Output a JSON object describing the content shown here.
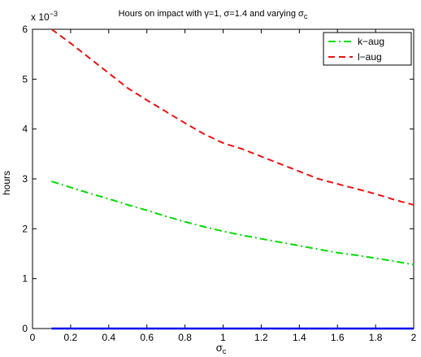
{
  "chart_data": {
    "type": "line",
    "title_prefix": "Hours on impact with ",
    "title_gamma": "γ=1, σ=1.4 and varying σ",
    "title_sub": "c",
    "xlabel_main": "σ",
    "xlabel_sub": "c",
    "ylabel": "hours",
    "y_multiplier_base": "x 10",
    "y_multiplier_exp": "−3",
    "xlim": [
      0,
      2
    ],
    "ylim": [
      0,
      6
    ],
    "xticks": [
      0,
      0.2,
      0.4,
      0.6,
      0.8,
      1,
      1.2,
      1.4,
      1.6,
      1.8,
      2
    ],
    "xtick_labels": [
      "0",
      "0.2",
      "0.4",
      "0.6",
      "0.8",
      "1",
      "1.2",
      "1.4",
      "1.6",
      "1.8",
      "2"
    ],
    "yticks": [
      0,
      1,
      2,
      3,
      4,
      5,
      6
    ],
    "ytick_labels": [
      "0",
      "1",
      "2",
      "3",
      "4",
      "5",
      "6"
    ],
    "legend_position": "top-right",
    "grid": false,
    "series": [
      {
        "name": "k−aug",
        "color": "#00dd00",
        "dash": "dash-dot",
        "x": [
          0.1,
          0.2,
          0.3,
          0.4,
          0.5,
          0.6,
          0.7,
          0.8,
          0.9,
          1.0,
          1.1,
          1.2,
          1.3,
          1.4,
          1.5,
          1.6,
          1.7,
          1.8,
          1.9,
          2.0
        ],
        "y": [
          2.95,
          2.83,
          2.71,
          2.6,
          2.48,
          2.37,
          2.25,
          2.14,
          2.04,
          1.95,
          1.87,
          1.8,
          1.73,
          1.66,
          1.59,
          1.52,
          1.47,
          1.41,
          1.35,
          1.28
        ]
      },
      {
        "name": "l−aug",
        "color": "#ee1111",
        "dash": "dashed",
        "x": [
          0.1,
          0.2,
          0.3,
          0.4,
          0.5,
          0.6,
          0.7,
          0.8,
          0.9,
          1.0,
          1.1,
          1.2,
          1.3,
          1.4,
          1.5,
          1.6,
          1.7,
          1.8,
          1.9,
          2.0
        ],
        "y": [
          6.0,
          5.72,
          5.42,
          5.12,
          4.82,
          4.58,
          4.35,
          4.12,
          3.9,
          3.72,
          3.6,
          3.45,
          3.3,
          3.15,
          3.0,
          2.9,
          2.8,
          2.7,
          2.58,
          2.48
        ]
      },
      {
        "name": "",
        "color": "#0000ee",
        "dash": "solid",
        "x": [
          0.1,
          2.0
        ],
        "y": [
          0.0,
          0.0
        ]
      }
    ]
  }
}
